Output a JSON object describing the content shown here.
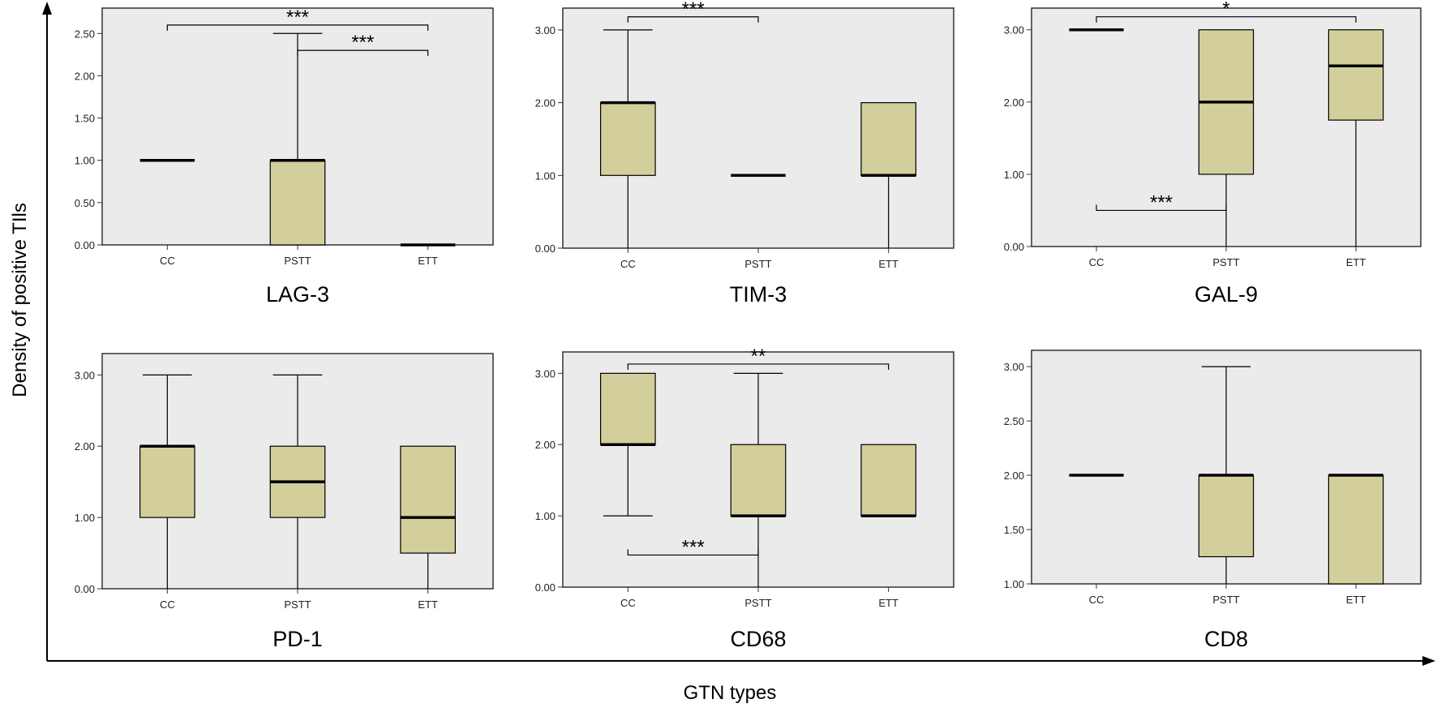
{
  "figure": {
    "ylabel": "Density of positive TIls",
    "xlabel": "GTN types",
    "box_fill": "#d3cf9c",
    "panel_bg": "#ebebeb",
    "frame_color": "#333333",
    "line_color": "#000000"
  },
  "chart_data": [
    {
      "type": "box",
      "title": "LAG-3",
      "categories": [
        "CC",
        "PSTT",
        "ETT"
      ],
      "ylim": [
        0,
        2.8
      ],
      "yticks": [
        0,
        0.5,
        1,
        1.5,
        2,
        2.5
      ],
      "ytick_labels": [
        "0.00",
        "0.50",
        "1.00",
        "1.50",
        "2.00",
        "2.50"
      ],
      "boxes": [
        {
          "min": 1,
          "q1": 1,
          "median": 1,
          "q3": 1,
          "max": 1
        },
        {
          "min": 0,
          "q1": 0,
          "median": 1,
          "q3": 1,
          "max": 2.5
        },
        {
          "min": 0,
          "q1": 0,
          "median": 0,
          "q3": 0,
          "max": 0
        }
      ],
      "annotations": [
        {
          "from": 0,
          "to": 2,
          "y": 2.6,
          "label": "***"
        },
        {
          "from": 1,
          "to": 2,
          "y": 2.3,
          "label": "***"
        }
      ]
    },
    {
      "type": "box",
      "title": "TIM-3",
      "categories": [
        "CC",
        "PSTT",
        "ETT"
      ],
      "ylim": [
        0,
        3.3
      ],
      "yticks": [
        0,
        1,
        2,
        3
      ],
      "ytick_labels": [
        "0.00",
        "1.00",
        "2.00",
        "3.00"
      ],
      "boxes": [
        {
          "min": 0,
          "q1": 1,
          "median": 2,
          "q3": 2,
          "max": 3
        },
        {
          "min": 1,
          "q1": 1,
          "median": 1,
          "q3": 1,
          "max": 1
        },
        {
          "min": 0,
          "q1": 1,
          "median": 1,
          "q3": 2,
          "max": 2
        }
      ],
      "annotations": [
        {
          "from": 0,
          "to": 1,
          "y": 3.18,
          "label": "***"
        }
      ]
    },
    {
      "type": "box",
      "title": "GAL-9",
      "categories": [
        "CC",
        "PSTT",
        "ETT"
      ],
      "ylim": [
        0,
        3.3
      ],
      "yticks": [
        0,
        1,
        2,
        3
      ],
      "ytick_labels": [
        "0.00",
        "1.00",
        "2.00",
        "3.00"
      ],
      "boxes": [
        {
          "min": 3,
          "q1": 3,
          "median": 3,
          "q3": 3,
          "max": 3
        },
        {
          "min": 0,
          "q1": 1,
          "median": 2,
          "q3": 3,
          "max": 3
        },
        {
          "min": 0,
          "q1": 1.75,
          "median": 2.5,
          "q3": 3,
          "max": 3
        }
      ],
      "annotations": [
        {
          "from": 0,
          "to": 2,
          "y": 3.18,
          "label": "*"
        },
        {
          "from": 0,
          "to": 1,
          "y": 0.5,
          "label": "***",
          "below": true
        }
      ]
    },
    {
      "type": "box",
      "title": "PD-1",
      "categories": [
        "CC",
        "PSTT",
        "ETT"
      ],
      "ylim": [
        0,
        3.3
      ],
      "yticks": [
        0,
        1,
        2,
        3
      ],
      "ytick_labels": [
        "0.00",
        "1.00",
        "2.00",
        "3.00"
      ],
      "boxes": [
        {
          "min": 0,
          "q1": 1,
          "median": 2,
          "q3": 2,
          "max": 3
        },
        {
          "min": 0,
          "q1": 1,
          "median": 1.5,
          "q3": 2,
          "max": 3
        },
        {
          "min": 0,
          "q1": 0.5,
          "median": 1,
          "q3": 2,
          "max": 2
        }
      ],
      "annotations": []
    },
    {
      "type": "box",
      "title": "CD68",
      "categories": [
        "CC",
        "PSTT",
        "ETT"
      ],
      "ylim": [
        0,
        3.3
      ],
      "yticks": [
        0,
        1,
        2,
        3
      ],
      "ytick_labels": [
        "0.00",
        "1.00",
        "2.00",
        "3.00"
      ],
      "boxes": [
        {
          "min": 1,
          "q1": 2,
          "median": 2,
          "q3": 3,
          "max": 3
        },
        {
          "min": 0,
          "q1": 1,
          "median": 1,
          "q3": 2,
          "max": 3
        },
        {
          "min": 1,
          "q1": 1,
          "median": 1,
          "q3": 2,
          "max": 2
        }
      ],
      "annotations": [
        {
          "from": 0,
          "to": 2,
          "y": 3.13,
          "label": "**"
        },
        {
          "from": 0,
          "to": 1,
          "y": 0.45,
          "label": "***",
          "below": true
        }
      ]
    },
    {
      "type": "box",
      "title": "CD8",
      "categories": [
        "CC",
        "PSTT",
        "ETT"
      ],
      "ylim": [
        1,
        3.15
      ],
      "yticks": [
        1,
        1.5,
        2,
        2.5,
        3
      ],
      "ytick_labels": [
        "1.00",
        "1.50",
        "2.00",
        "2.50",
        "3.00"
      ],
      "boxes": [
        {
          "min": 2,
          "q1": 2,
          "median": 2,
          "q3": 2,
          "max": 2
        },
        {
          "min": 1,
          "q1": 1.25,
          "median": 2,
          "q3": 2,
          "max": 3
        },
        {
          "min": 1,
          "q1": 1,
          "median": 2,
          "q3": 2,
          "max": 2
        }
      ],
      "annotations": []
    }
  ]
}
